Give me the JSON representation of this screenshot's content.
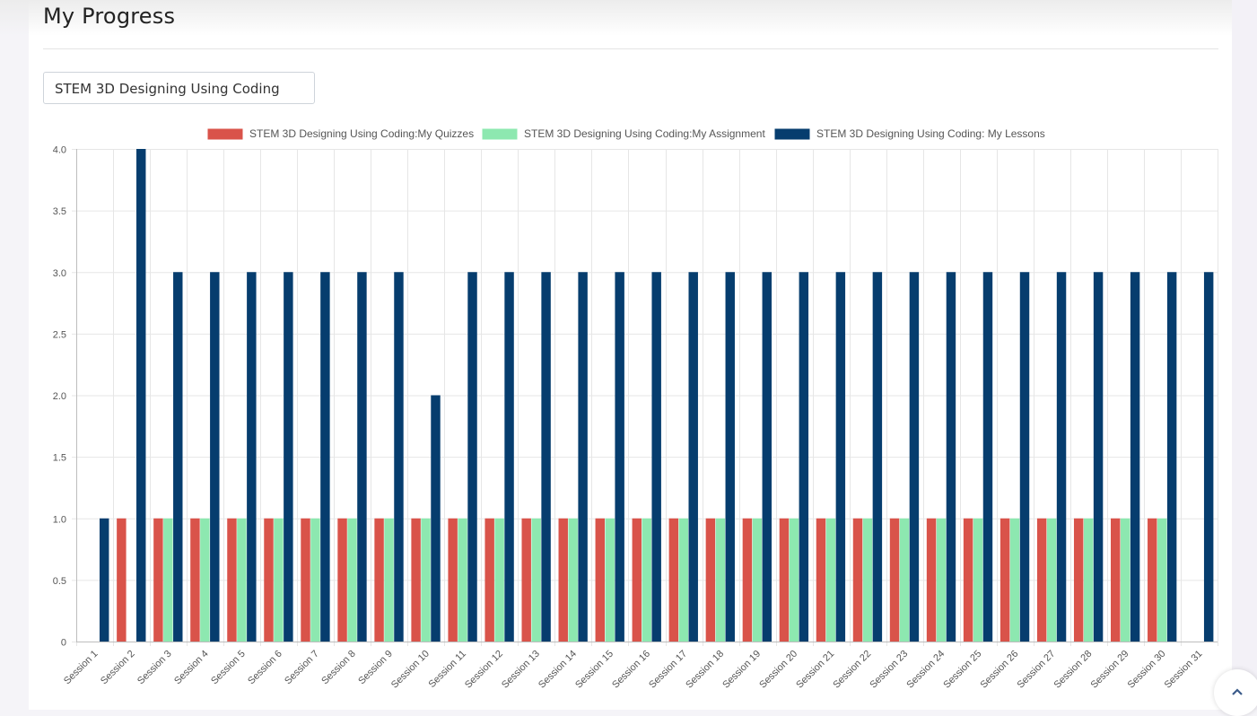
{
  "page": {
    "title": "My Progress",
    "course_select": {
      "selected": "STEM 3D Designing Using Coding"
    },
    "scroll_top_icon": "chevron-up-icon"
  },
  "chart_data": {
    "type": "bar",
    "title": "",
    "xlabel": "",
    "ylabel": "",
    "ylim": [
      0,
      4.0
    ],
    "yticks": [
      0,
      0.5,
      1.0,
      1.5,
      2.0,
      2.5,
      3.0,
      3.5,
      4.0
    ],
    "ytick_labels": [
      "0",
      "0.5",
      "1.0",
      "1.5",
      "2.0",
      "2.5",
      "3.0",
      "3.5",
      "4.0"
    ],
    "grid": true,
    "legend_position": "top-center",
    "categories": [
      "Session 1",
      "Session 2",
      "Session 3",
      "Session 4",
      "Session 5",
      "Session 6",
      "Session 7",
      "Session 8",
      "Session 9",
      "Session 10",
      "Session 11",
      "Session 12",
      "Session 13",
      "Session 14",
      "Session 15",
      "Session 16",
      "Session 17",
      "Session 18",
      "Session 19",
      "Session 20",
      "Session 21",
      "Session 22",
      "Session 23",
      "Session 24",
      "Session 25",
      "Session 26",
      "Session 27",
      "Session 28",
      "Session 29",
      "Session 30",
      "Session 31"
    ],
    "series": [
      {
        "name": "STEM 3D Designing Using Coding:My Quizzes",
        "color": "#d9534a",
        "values": [
          0,
          1,
          1,
          1,
          1,
          1,
          1,
          1,
          1,
          1,
          1,
          1,
          1,
          1,
          1,
          1,
          1,
          1,
          1,
          1,
          1,
          1,
          1,
          1,
          1,
          1,
          1,
          1,
          1,
          1,
          0
        ]
      },
      {
        "name": "STEM 3D Designing Using Coding:My Assignment",
        "color": "#8de8b0",
        "values": [
          0,
          0,
          1,
          1,
          1,
          1,
          1,
          1,
          1,
          1,
          1,
          1,
          1,
          1,
          1,
          1,
          1,
          1,
          1,
          1,
          1,
          1,
          1,
          1,
          1,
          1,
          1,
          1,
          1,
          1,
          0
        ]
      },
      {
        "name": "STEM 3D Designing Using Coding: My Lessons",
        "color": "#063d6e",
        "values": [
          1,
          4,
          3,
          3,
          3,
          3,
          3,
          3,
          3,
          2,
          3,
          3,
          3,
          3,
          3,
          3,
          3,
          3,
          3,
          3,
          3,
          3,
          3,
          3,
          3,
          3,
          3,
          3,
          3,
          3,
          3
        ]
      }
    ]
  }
}
